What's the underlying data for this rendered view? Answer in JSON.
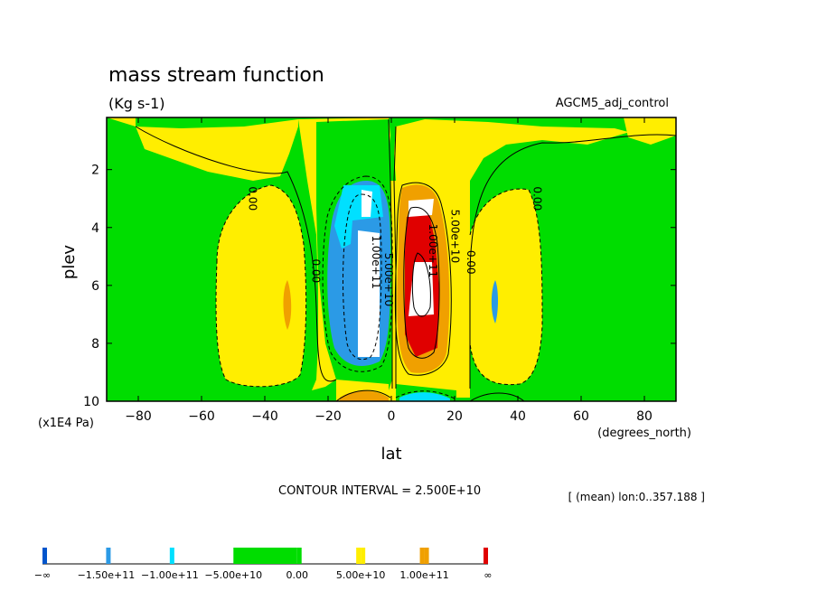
{
  "chart_data": {
    "type": "heatmap",
    "title": "mass stream function",
    "subtitle": "(Kg s-1)",
    "dataset_label": "AGCM5_adj_control",
    "xlabel": "lat",
    "x_units": "(degrees_north)",
    "ylabel": "plev",
    "y_units": "(x1E4 Pa)",
    "xlim": [
      -90,
      90
    ],
    "ylim": [
      10,
      0.2
    ],
    "x_ticks": [
      -80,
      -60,
      -40,
      -20,
      0,
      20,
      40,
      60,
      80
    ],
    "y_ticks": [
      2,
      4,
      6,
      8,
      10
    ],
    "contour_interval_text": "CONTOUR INTERVAL = 2.500E+10",
    "mean_text": "[ (mean) lon:0..357.188 ]",
    "contour_labels": [
      {
        "text": "0.00",
        "lat": -45,
        "plev": 3.0
      },
      {
        "text": "0.00",
        "lat": -25,
        "plev": 5.5
      },
      {
        "text": "1.00e+11",
        "lat": -6,
        "plev": 5.2
      },
      {
        "text": "5.00e+10",
        "lat": -2,
        "plev": 5.8
      },
      {
        "text": "1.00e+11",
        "lat": 12,
        "plev": 4.8
      },
      {
        "text": "5.00e+10",
        "lat": 19,
        "plev": 4.3
      },
      {
        "text": "0.00",
        "lat": 24,
        "plev": 5.2
      },
      {
        "text": "0.00",
        "lat": 45,
        "plev": 3.0
      }
    ],
    "legend": {
      "colors": [
        "#0055cc",
        "#2b9ae6",
        "#00e0ff",
        "#00dd00",
        "#00dd00",
        "#ffee00",
        "#f0a000",
        "#e00000"
      ],
      "labels": [
        "-∞",
        "-1.50e+11",
        "-1.00e+11",
        "-5.00e+10",
        "0.00",
        "5.00e+10",
        "1.00e+11",
        "∞"
      ]
    },
    "fill_colors": {
      "zero_to_p5": "#ffee00",
      "p5_to_p10": "#f0a000",
      "p10_to_p15": "#e00000",
      "above_p15": "#ffffff",
      "m5_to_zero": "#00dd00",
      "m10_to_m5": "#2b9ae6",
      "m15_to_m10": "#00e0ff",
      "below_m15": "#ffffff"
    }
  }
}
